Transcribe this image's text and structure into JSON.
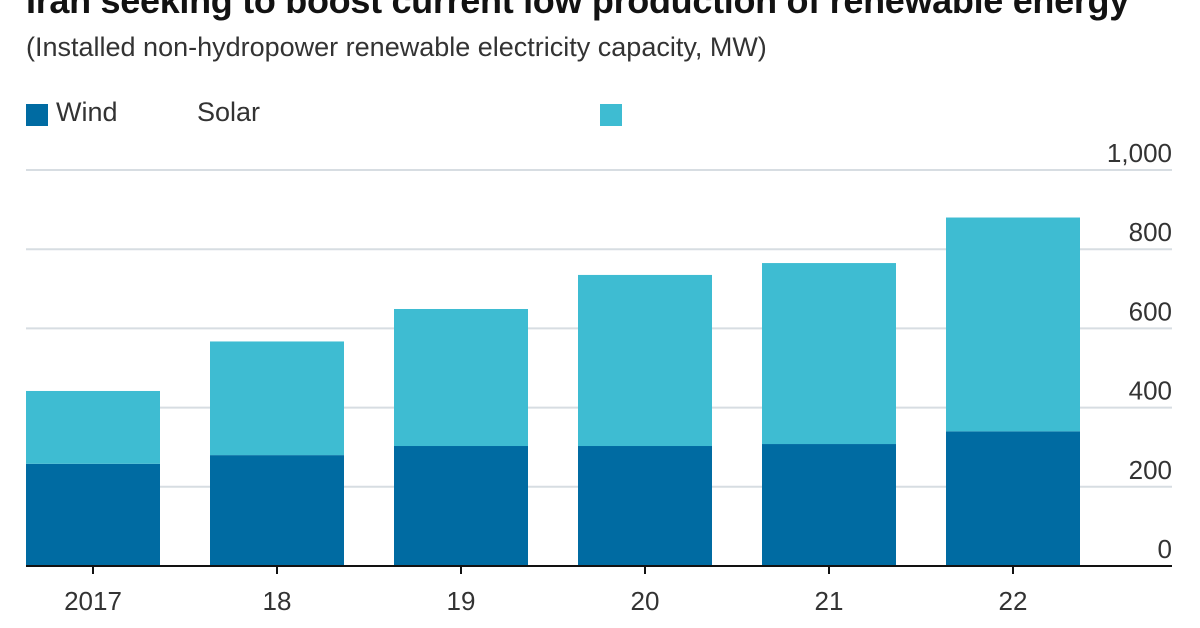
{
  "chart_data": {
    "type": "bar",
    "stacked": true,
    "title": "Iran seeking to boost current low production of renewable energy",
    "subtitle": "(Installed non-hydropower renewable electricity capacity, MW)",
    "categories": [
      "2017",
      "18",
      "19",
      "20",
      "21",
      "22"
    ],
    "series": [
      {
        "name": "Wind",
        "color": "#006ba2",
        "values": [
          258,
          280,
          303,
          303,
          308,
          340
        ]
      },
      {
        "name": "Solar",
        "color": "#3ebcd2",
        "values": [
          184,
          287,
          346,
          432,
          457,
          540
        ]
      }
    ],
    "ylim": [
      0,
      1000
    ],
    "yticks": [
      0,
      200,
      400,
      600,
      800,
      1000
    ],
    "ytick_labels": [
      "0",
      "200",
      "400",
      "600",
      "800",
      "1,000"
    ],
    "y_axis_position": "right",
    "grid": true,
    "legend_position": "top-left",
    "xlabel": "",
    "ylabel": ""
  },
  "colors": {
    "grid": "#d7dde2",
    "axis": "#121212",
    "unlabeled_swatch": "#3ebcd2"
  }
}
